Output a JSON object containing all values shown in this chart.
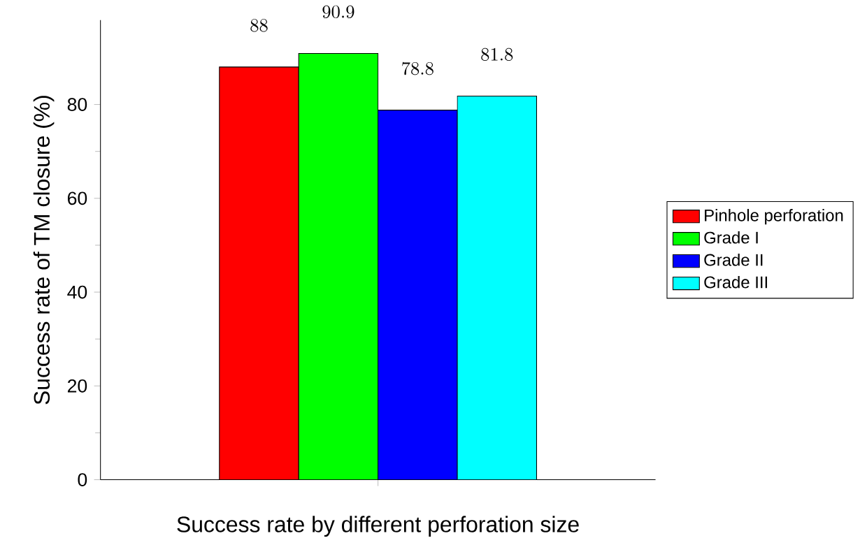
{
  "chart_data": {
    "type": "bar",
    "xlabel": "Success rate by different perforation size",
    "ylabel": "Success rate of TM closure (%)",
    "categories": [
      null
    ],
    "series": [
      {
        "name": "Pinhole perforation",
        "color": "#ff0000",
        "values": [
          88
        ]
      },
      {
        "name": "Grade I",
        "color": "#00ff00",
        "values": [
          90.9
        ]
      },
      {
        "name": "Grade II",
        "color": "#0000ff",
        "values": [
          78.8
        ]
      },
      {
        "name": "Grade III",
        "color": "#00ffff",
        "values": [
          81.8
        ]
      }
    ],
    "ylim": [
      0,
      98
    ],
    "yticks": [
      0,
      20,
      40,
      60,
      80
    ],
    "data_labels": true,
    "legend": "right",
    "grid": false
  }
}
